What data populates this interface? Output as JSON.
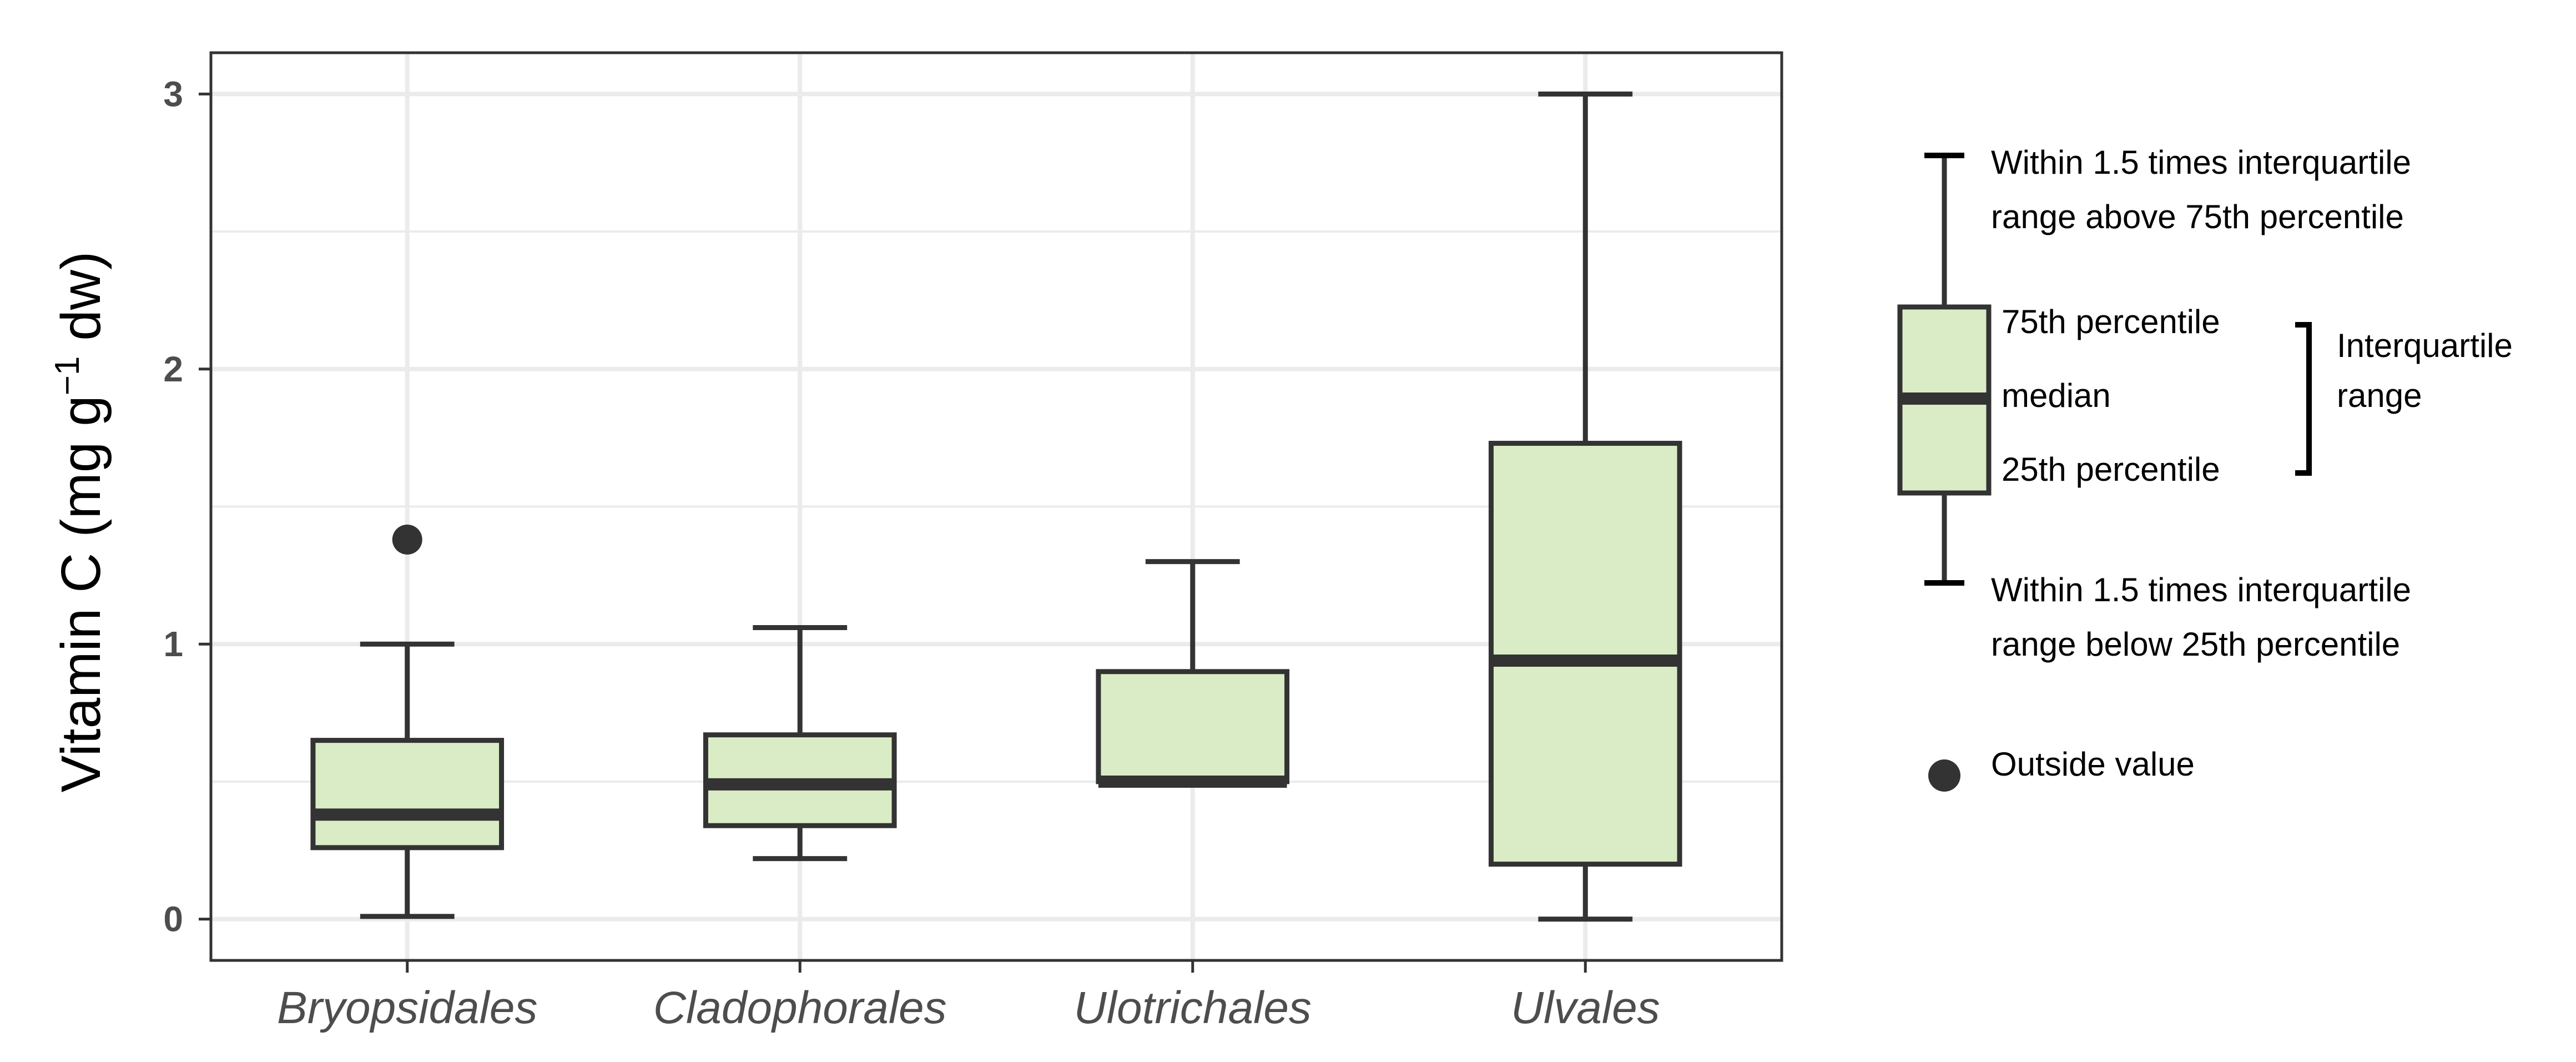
{
  "chart_data": {
    "type": "boxplot",
    "ylabel": "Vitamin C (mg g⁻¹ dw)",
    "ylabel_parts": {
      "base": "Vitamin C (mg g",
      "superscript": "−1",
      "tail": " dw)"
    },
    "ylim": [
      -0.15,
      3.15
    ],
    "yticks": [
      0,
      1,
      2,
      3
    ],
    "grid": true,
    "categories": [
      "Bryopsidales",
      "Cladophorales",
      "Ulotrichales",
      "Ulvales"
    ],
    "boxes": [
      {
        "category": "Bryopsidales",
        "whisker_low": 0.01,
        "q1": 0.26,
        "median": 0.38,
        "q3": 0.65,
        "whisker_high": 1.0,
        "outliers": [
          1.38
        ]
      },
      {
        "category": "Cladophorales",
        "whisker_low": 0.22,
        "q1": 0.34,
        "median": 0.49,
        "q3": 0.67,
        "whisker_high": 1.06,
        "outliers": []
      },
      {
        "category": "Ulotrichales",
        "whisker_low": 0.5,
        "q1": 0.5,
        "median": 0.5,
        "q3": 0.9,
        "whisker_high": 1.3,
        "outliers": []
      },
      {
        "category": "Ulvales",
        "whisker_low": 0.0,
        "q1": 0.2,
        "median": 0.94,
        "q3": 1.73,
        "whisker_high": 3.0,
        "outliers": []
      }
    ],
    "colors": {
      "box_fill": "#d9ecc6",
      "stroke": "#333333",
      "grid": "#ebebeb",
      "panel_border": "#333333"
    },
    "legend": {
      "placement": "right",
      "whisker_high_line1": "Within 1.5 times interquartile",
      "whisker_high_line2": "range above 75th percentile",
      "q3": "75th percentile",
      "median": "median",
      "q1": "25th percentile",
      "iqr_line1": "Interquartile",
      "iqr_line2": "range",
      "whisker_low_line1": "Within 1.5 times interquartile",
      "whisker_low_line2": "range below 25th percentile",
      "outlier": "Outside value"
    }
  }
}
